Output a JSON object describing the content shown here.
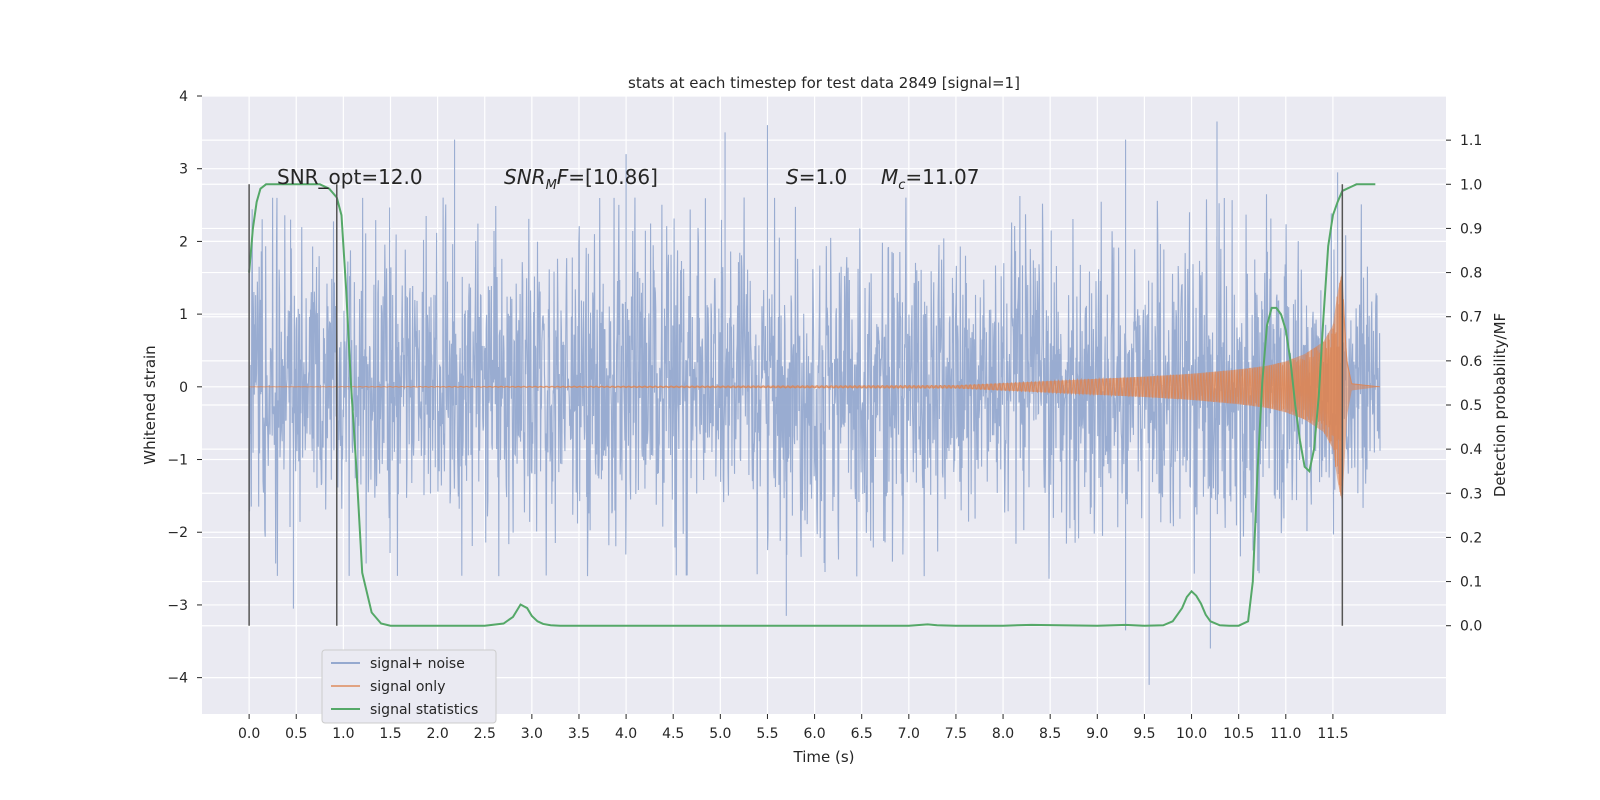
{
  "chart_data": {
    "type": "line",
    "title": "stats at each timestep for test data 2849 [signal=1]",
    "xlabel": "Time (s)",
    "ylabel_left": "Whitened strain",
    "ylabel_right": "Detection probability/MF",
    "xlim": [
      -0.5,
      12.7
    ],
    "ylim_left": [
      -4.5,
      4
    ],
    "ylim_right": [
      -0.2,
      1.2
    ],
    "x_ticks": [
      0.0,
      0.5,
      1.0,
      1.5,
      2.0,
      2.5,
      3.0,
      3.5,
      4.0,
      4.5,
      5.0,
      5.5,
      6.0,
      6.5,
      7.0,
      7.5,
      8.0,
      8.5,
      9.0,
      9.5,
      10.0,
      10.5,
      11.0,
      11.5
    ],
    "x_tick_labels": [
      "0.0",
      "0.5",
      "1.0",
      "1.5",
      "2.0",
      "2.5",
      "3.0",
      "3.5",
      "4.0",
      "4.5",
      "5.0",
      "5.5",
      "6.0",
      "6.5",
      "7.0",
      "7.5",
      "8.0",
      "8.5",
      "9.0",
      "9.5",
      "10.0",
      "10.5",
      "11.0",
      "11.5"
    ],
    "y_left_ticks": [
      4,
      3,
      2,
      1,
      0,
      -1,
      -2,
      -3,
      -4
    ],
    "y_left_tick_labels": [
      "4",
      "3",
      "2",
      "1",
      "0",
      "−1",
      "−2",
      "−3",
      "−4"
    ],
    "y_right_ticks": [
      1.1,
      1.0,
      0.9,
      0.8,
      0.7,
      0.6,
      0.5,
      0.4,
      0.3,
      0.2,
      0.1,
      0.0
    ],
    "y_right_tick_labels": [
      "1.1",
      "1.0",
      "0.9",
      "0.8",
      "0.7",
      "0.6",
      "0.5",
      "0.4",
      "0.3",
      "0.2",
      "0.1",
      "0.0"
    ],
    "grid": true,
    "legend_position": "lower-left",
    "annotations": {
      "snr_opt": "SNR_opt=12.0",
      "snr_mf_base": "SNR",
      "snr_mf_sub": "M",
      "snr_mf_rest": "F=[10.86]",
      "s_var": "S",
      "s_rest": "=1.0",
      "mc_base": "M",
      "mc_sub": "c",
      "mc_rest": "=11.07"
    },
    "series": [
      {
        "name": "signal+ noise",
        "color": "#95a9cf",
        "axis": "left",
        "description_of_values": "dense whitened noise between about -2.5 and +2.5, rare peaks to ±3.5",
        "t_start": 0.0,
        "t_end": 12.0,
        "typical_amplitude": 1.6,
        "peak_values": [
          {
            "x": 0.44,
            "y": 2.3
          },
          {
            "x": 2.18,
            "y": 3.4
          },
          {
            "x": 4.0,
            "y": 3.2
          },
          {
            "x": 5.05,
            "y": 3.5
          },
          {
            "x": 5.5,
            "y": 3.6
          },
          {
            "x": 9.3,
            "y": 3.4
          },
          {
            "x": 10.27,
            "y": 3.65
          },
          {
            "x": 11.55,
            "y": 2.95
          },
          {
            "x": 0.47,
            "y": -3.05
          },
          {
            "x": 5.7,
            "y": -3.15
          },
          {
            "x": 9.3,
            "y": -3.35
          },
          {
            "x": 9.55,
            "y": -4.1
          },
          {
            "x": 10.2,
            "y": -3.6
          }
        ]
      },
      {
        "name": "signal only",
        "color": "#dd8452",
        "axis": "left",
        "description_of_values": "chirp waveform, near zero until ~7.5 s, growing to ±1.6 at merger ~11.6 s",
        "envelope": {
          "x": [
            0.0,
            7.5,
            8.0,
            8.5,
            9.0,
            9.5,
            10.0,
            10.5,
            10.8,
            11.0,
            11.2,
            11.4,
            11.5,
            11.55,
            11.6,
            11.65,
            11.7,
            12.0
          ],
          "y": [
            0.0,
            0.02,
            0.05,
            0.08,
            0.11,
            0.14,
            0.18,
            0.24,
            0.29,
            0.35,
            0.45,
            0.62,
            0.85,
            1.3,
            1.6,
            0.4,
            0.05,
            0.0
          ]
        }
      },
      {
        "name": "signal statistics",
        "color": "#55a868",
        "axis": "right",
        "x": [
          0.0,
          0.04,
          0.08,
          0.12,
          0.18,
          0.25,
          0.35,
          0.45,
          0.6,
          0.75,
          0.85,
          0.93,
          0.98,
          1.03,
          1.08,
          1.14,
          1.2,
          1.3,
          1.4,
          1.5,
          1.7,
          2.0,
          2.5,
          2.7,
          2.8,
          2.88,
          2.95,
          3.0,
          3.06,
          3.12,
          3.2,
          3.3,
          3.5,
          4.0,
          5.0,
          6.0,
          7.0,
          7.2,
          7.3,
          7.5,
          8.0,
          8.3,
          9.0,
          9.3,
          9.5,
          9.7,
          9.8,
          9.9,
          9.95,
          10.0,
          10.05,
          10.1,
          10.15,
          10.2,
          10.3,
          10.4,
          10.5,
          10.6,
          10.65,
          10.7,
          10.75,
          10.8,
          10.85,
          10.9,
          10.95,
          11.0,
          11.05,
          11.1,
          11.15,
          11.2,
          11.25,
          11.3,
          11.35,
          11.4,
          11.45,
          11.5,
          11.55,
          11.6,
          11.65,
          11.7,
          11.75,
          11.8,
          11.9,
          11.95
        ],
        "values": [
          0.8,
          0.9,
          0.96,
          0.99,
          1.0,
          1.0,
          1.0,
          1.0,
          1.0,
          1.0,
          0.99,
          0.97,
          0.93,
          0.76,
          0.55,
          0.35,
          0.12,
          0.03,
          0.005,
          0.0,
          0.0,
          0.0,
          0.0,
          0.005,
          0.02,
          0.048,
          0.04,
          0.022,
          0.01,
          0.004,
          0.001,
          0.0,
          0.0,
          0.0,
          0.0,
          0.0,
          0.0,
          0.003,
          0.001,
          0.0,
          0.0,
          0.002,
          0.0,
          0.002,
          0.0,
          0.001,
          0.01,
          0.04,
          0.065,
          0.078,
          0.068,
          0.05,
          0.025,
          0.01,
          0.001,
          0.0,
          0.0,
          0.01,
          0.1,
          0.35,
          0.55,
          0.68,
          0.72,
          0.72,
          0.705,
          0.67,
          0.6,
          0.5,
          0.42,
          0.36,
          0.35,
          0.4,
          0.52,
          0.7,
          0.86,
          0.93,
          0.96,
          0.985,
          0.99,
          0.995,
          1.0,
          1.0,
          1.0,
          1.0
        ]
      }
    ],
    "vertical_markers": [
      {
        "x": 0.0,
        "ymax": 1.0
      },
      {
        "x": 0.93,
        "ymax": 1.0
      },
      {
        "x": 11.6,
        "ymax": 1.0
      }
    ]
  }
}
